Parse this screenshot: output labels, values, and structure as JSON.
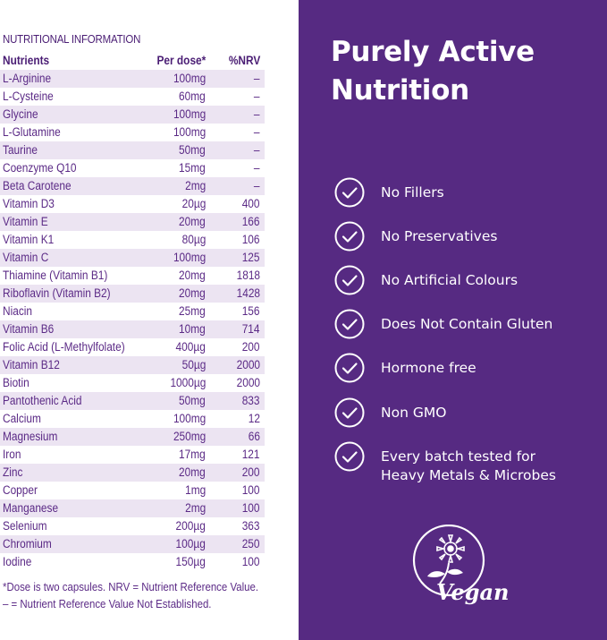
{
  "nutrition": {
    "title": "NUTRITIONAL INFORMATION",
    "headers": {
      "nutrient": "Nutrients",
      "dose": "Per dose*",
      "nrv": "%NRV"
    },
    "rows": [
      {
        "name": "L-Arginine",
        "dose": "100mg",
        "nrv": "–"
      },
      {
        "name": "L-Cysteine",
        "dose": "60mg",
        "nrv": "–"
      },
      {
        "name": "Glycine",
        "dose": "100mg",
        "nrv": "–"
      },
      {
        "name": "L-Glutamine",
        "dose": "100mg",
        "nrv": "–"
      },
      {
        "name": "Taurine",
        "dose": "50mg",
        "nrv": "–"
      },
      {
        "name": "Coenzyme Q10",
        "dose": "15mg",
        "nrv": "–"
      },
      {
        "name": "Beta Carotene",
        "dose": "2mg",
        "nrv": "–"
      },
      {
        "name": "Vitamin D3",
        "dose": "20µg",
        "nrv": "400"
      },
      {
        "name": "Vitamin E",
        "dose": "20mg",
        "nrv": "166"
      },
      {
        "name": "Vitamin K1",
        "dose": "80µg",
        "nrv": "106"
      },
      {
        "name": "Vitamin C",
        "dose": "100mg",
        "nrv": "125"
      },
      {
        "name": "Thiamine (Vitamin B1)",
        "dose": "20mg",
        "nrv": "1818"
      },
      {
        "name": "Riboflavin (Vitamin B2)",
        "dose": "20mg",
        "nrv": "1428"
      },
      {
        "name": "Niacin",
        "dose": "25mg",
        "nrv": "156"
      },
      {
        "name": "Vitamin B6",
        "dose": "10mg",
        "nrv": "714"
      },
      {
        "name": "Folic Acid (L-Methylfolate)",
        "dose": "400µg",
        "nrv": "200"
      },
      {
        "name": "Vitamin B12",
        "dose": "50µg",
        "nrv": "2000"
      },
      {
        "name": "Biotin",
        "dose": "1000µg",
        "nrv": "2000"
      },
      {
        "name": "Pantothenic Acid",
        "dose": "50mg",
        "nrv": "833"
      },
      {
        "name": "Calcium",
        "dose": "100mg",
        "nrv": "12"
      },
      {
        "name": "Magnesium",
        "dose": "250mg",
        "nrv": "66"
      },
      {
        "name": "Iron",
        "dose": "17mg",
        "nrv": "121"
      },
      {
        "name": "Zinc",
        "dose": "20mg",
        "nrv": "200"
      },
      {
        "name": "Copper",
        "dose": "1mg",
        "nrv": "100"
      },
      {
        "name": "Manganese",
        "dose": "2mg",
        "nrv": "100"
      },
      {
        "name": "Selenium",
        "dose": "200µg",
        "nrv": "363"
      },
      {
        "name": "Chromium",
        "dose": "100µg",
        "nrv": "250"
      },
      {
        "name": "Iodine",
        "dose": "150µg",
        "nrv": "100"
      }
    ],
    "footnote_line1": "*Dose is two capsules. NRV = Nutrient Reference Value.",
    "footnote_line2": "– = Nutrient Reference Value Not Established."
  },
  "promo": {
    "headline_line1": "Purely Active",
    "headline_line2": "Nutrition",
    "features": [
      {
        "line1": "No Fillers",
        "line2": ""
      },
      {
        "line1": "No Preservatives",
        "line2": ""
      },
      {
        "line1": "No Artificial Colours",
        "line2": ""
      },
      {
        "line1": "Does Not Contain Gluten",
        "line2": ""
      },
      {
        "line1": "Hormone free",
        "line2": ""
      },
      {
        "line1": "Non GMO",
        "line2": ""
      },
      {
        "line1": "Every batch tested for",
        "line2": "Heavy Metals & Microbes"
      }
    ],
    "check_icon": "check-circle-icon",
    "vegan_logo_text": "Vegan",
    "colors": {
      "panel": "#562a82",
      "text": "#ffffff",
      "table_text": "#5b2a86",
      "row_stripe": "#ece4f2"
    }
  }
}
